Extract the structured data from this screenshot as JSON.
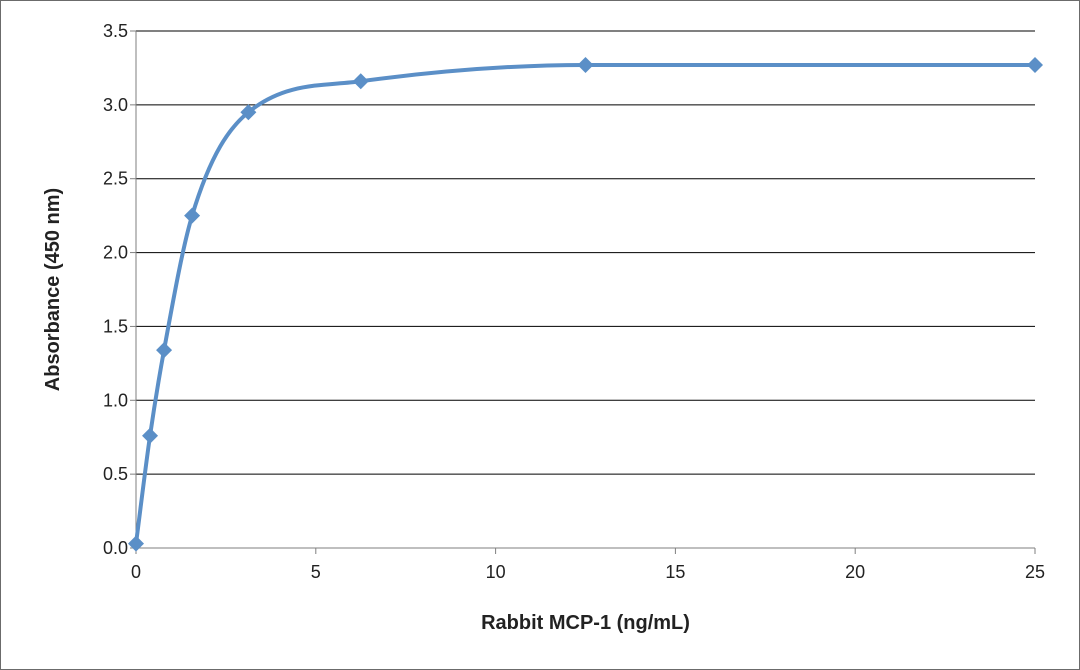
{
  "chart_data": {
    "type": "line",
    "xlabel": "Rabbit MCP-1 (ng/mL)",
    "ylabel": "Absorbance (450 nm)",
    "xlim": [
      0,
      25
    ],
    "ylim": [
      0,
      3.5
    ],
    "x_ticks": [
      "0",
      "5",
      "10",
      "15",
      "20",
      "25"
    ],
    "y_ticks": [
      "0.0",
      "0.5",
      "1.0",
      "1.5",
      "2.0",
      "2.5",
      "3.0",
      "3.5"
    ],
    "grid": "horizontal",
    "legend": "none",
    "series": [
      {
        "color": "#5b8fc7",
        "marker": "diamond",
        "smooth": true,
        "x": [
          0,
          0.39,
          0.78,
          1.56,
          3.125,
          6.25,
          12.5,
          25
        ],
        "y": [
          0.03,
          0.76,
          1.34,
          2.25,
          2.95,
          3.16,
          3.27,
          3.27
        ]
      }
    ]
  }
}
